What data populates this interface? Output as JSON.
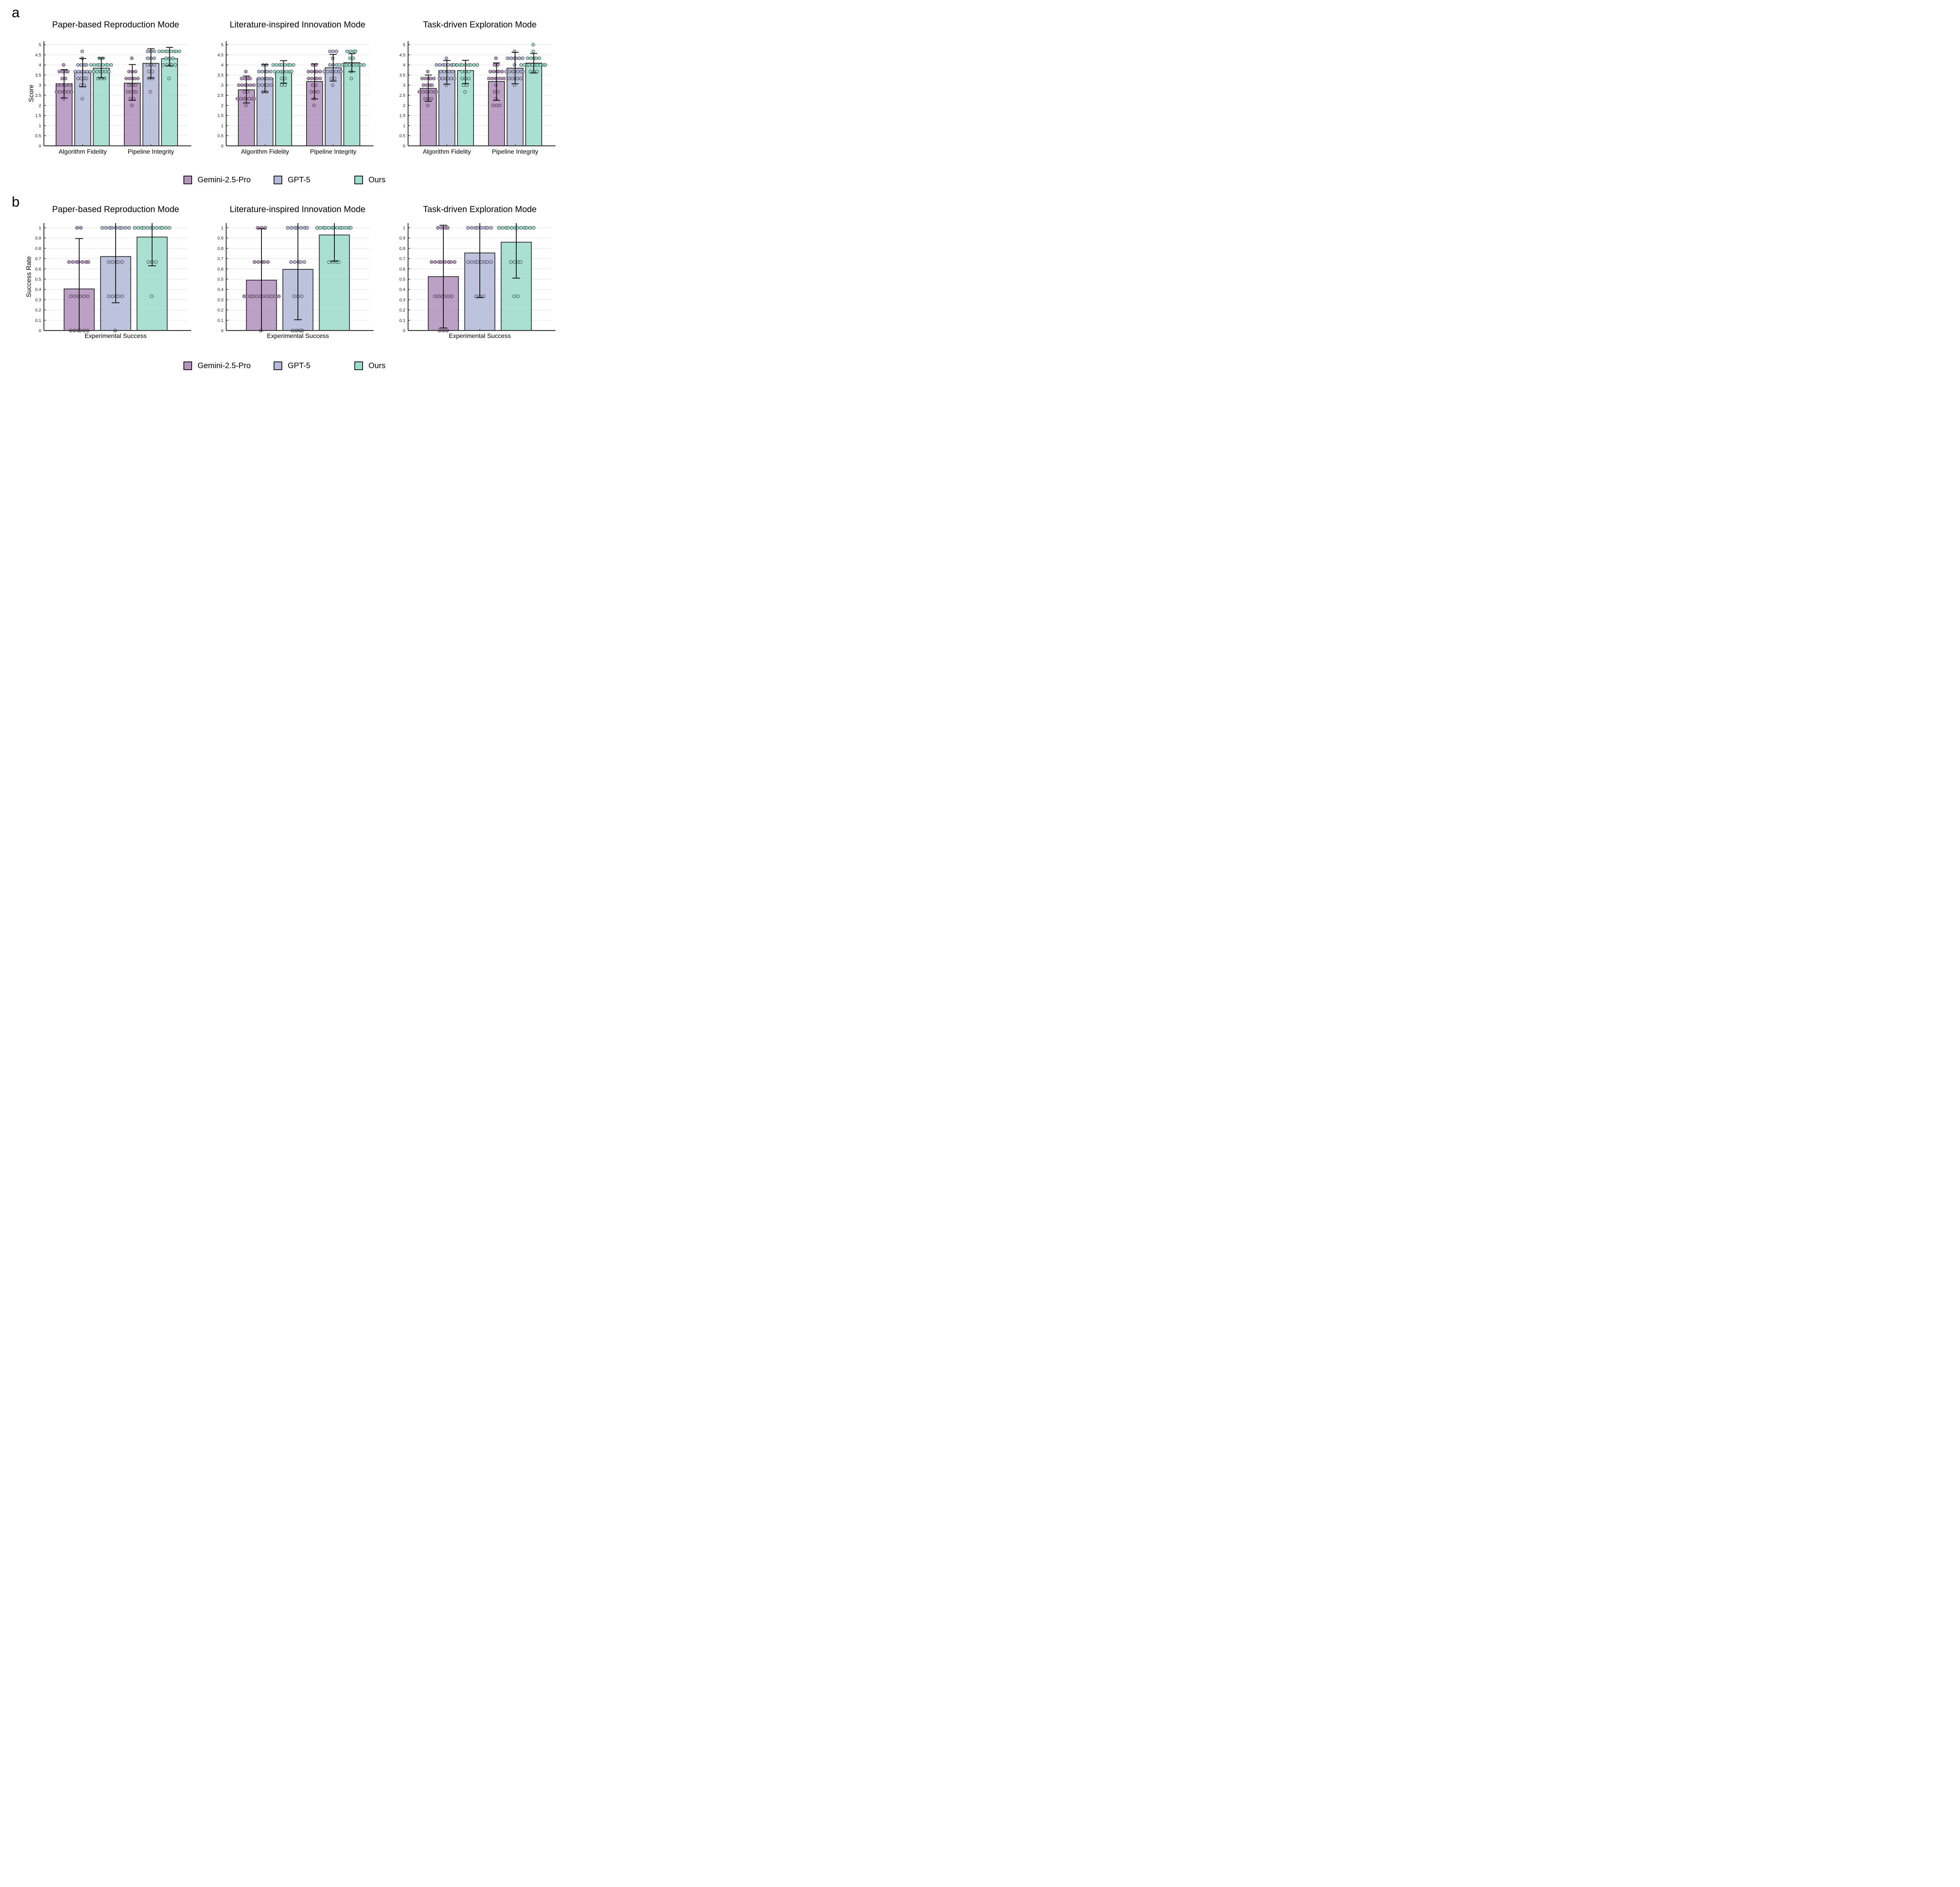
{
  "figure": {
    "background": "#ffffff",
    "panel_letters": {
      "a": "a",
      "b": "b"
    }
  },
  "legend": {
    "items": [
      {
        "label": "Gemini-2.5-Pro",
        "fill": "#b493bd",
        "point_fill": "#b288bb"
      },
      {
        "label": "GPT-5",
        "fill": "#b4bad8",
        "point_fill": "#aeb4d8"
      },
      {
        "label": "Ours",
        "fill": "#9edccb",
        "point_fill": "#8fdec6"
      }
    ]
  },
  "style_colors": {
    "grid": "#e3e3e3",
    "axis": "#2f2f2f",
    "error_bar": "#0d0d0d",
    "bar_edge": "#1f1f1f",
    "point_edge": "#4a4a4a",
    "tick_text": "#1a1a1a"
  },
  "chart_data": [
    {
      "type": "bar",
      "row": "a",
      "title": "Paper-based Reproduction Mode",
      "ylabel": "Score",
      "ylim": [
        0,
        5.17
      ],
      "yticks": [
        0,
        0.5,
        1,
        1.5,
        2,
        2.5,
        3,
        3.5,
        4,
        4.5,
        5
      ],
      "grid": true,
      "categories": [
        "Algorithm Fidelity",
        "Pipeline Integrity"
      ],
      "series": [
        {
          "name": "Gemini-2.5-Pro",
          "values": [
            3.07,
            3.1
          ],
          "err_lo": [
            2.37,
            2.25
          ],
          "err_hi": [
            3.77,
            4.02
          ],
          "points": [
            [
              [
                4.0,
                1
              ],
              [
                3.67,
                4
              ],
              [
                3.33,
                2
              ],
              [
                3.0,
                5
              ],
              [
                2.67,
                6
              ],
              [
                2.33,
                1
              ]
            ],
            [
              [
                4.33,
                1
              ],
              [
                3.67,
                3
              ],
              [
                3.33,
                5
              ],
              [
                3.0,
                3
              ],
              [
                2.67,
                4
              ],
              [
                2.33,
                2
              ],
              [
                2.0,
                1
              ]
            ]
          ]
        },
        {
          "name": "GPT-5",
          "values": [
            3.62,
            4.08
          ],
          "err_lo": [
            2.92,
            3.35
          ],
          "err_hi": [
            4.32,
            4.8
          ],
          "points": [
            [
              [
                4.67,
                1
              ],
              [
                4.33,
                1
              ],
              [
                4.0,
                4
              ],
              [
                3.67,
                6
              ],
              [
                3.33,
                4
              ],
              [
                3.0,
                2
              ],
              [
                2.33,
                1
              ]
            ],
            [
              [
                4.67,
                3
              ],
              [
                4.33,
                3
              ],
              [
                4.0,
                3
              ],
              [
                3.67,
                2
              ],
              [
                3.33,
                2
              ],
              [
                2.67,
                1
              ]
            ]
          ]
        },
        {
          "name": "Ours",
          "values": [
            3.84,
            4.31
          ],
          "err_lo": [
            3.36,
            3.95
          ],
          "err_hi": [
            4.34,
            4.87
          ],
          "points": [
            [
              [
                4.33,
                2
              ],
              [
                4.0,
                8
              ],
              [
                3.67,
                6
              ],
              [
                3.33,
                3
              ]
            ],
            [
              [
                4.67,
                8
              ],
              [
                4.33,
                3
              ],
              [
                4.0,
                5
              ],
              [
                3.33,
                1
              ]
            ]
          ]
        }
      ]
    },
    {
      "type": "bar",
      "row": "a",
      "title": "Literature-inspired Innovation Mode",
      "ylabel": "",
      "ylim": [
        0,
        5.17
      ],
      "yticks": [
        0,
        0.5,
        1,
        1.5,
        2,
        2.5,
        3,
        3.5,
        4,
        4.5,
        5
      ],
      "grid": true,
      "categories": [
        "Algorithm Fidelity",
        "Pipeline Integrity"
      ],
      "series": [
        {
          "name": "Gemini-2.5-Pro",
          "values": [
            2.77,
            3.18
          ],
          "err_lo": [
            2.12,
            2.32
          ],
          "err_hi": [
            3.45,
            4.05
          ],
          "points": [
            [
              [
                3.67,
                1
              ],
              [
                3.33,
                4
              ],
              [
                3.0,
                6
              ],
              [
                2.67,
                2
              ],
              [
                2.33,
                7
              ],
              [
                2.0,
                1
              ]
            ],
            [
              [
                4.0,
                2
              ],
              [
                3.67,
                5
              ],
              [
                3.33,
                5
              ],
              [
                3.0,
                2
              ],
              [
                2.67,
                3
              ],
              [
                2.33,
                1
              ],
              [
                2.0,
                1
              ]
            ]
          ]
        },
        {
          "name": "GPT-5",
          "values": [
            3.34,
            3.86
          ],
          "err_lo": [
            2.66,
            3.2
          ],
          "err_hi": [
            4.02,
            4.52
          ],
          "points": [
            [
              [
                4.0,
                2
              ],
              [
                3.67,
                5
              ],
              [
                3.33,
                5
              ],
              [
                3.0,
                5
              ],
              [
                2.67,
                2
              ]
            ],
            [
              [
                4.67,
                3
              ],
              [
                4.33,
                1
              ],
              [
                4.0,
                3
              ],
              [
                3.67,
                7
              ],
              [
                3.33,
                2
              ],
              [
                3.0,
                1
              ]
            ]
          ]
        },
        {
          "name": "Ours",
          "values": [
            3.66,
            4.11
          ],
          "err_lo": [
            3.1,
            3.66
          ],
          "err_hi": [
            4.21,
            4.56
          ],
          "points": [
            [
              [
                4.0,
                8
              ],
              [
                3.67,
                7
              ],
              [
                3.33,
                2
              ],
              [
                3.0,
                2
              ]
            ],
            [
              [
                4.67,
                4
              ],
              [
                4.33,
                2
              ],
              [
                4.0,
                11
              ],
              [
                3.67,
                1
              ],
              [
                3.33,
                1
              ]
            ]
          ]
        }
      ]
    },
    {
      "type": "bar",
      "row": "a",
      "title": "Task-driven Exploration Mode",
      "ylabel": "",
      "ylim": [
        0,
        5.17
      ],
      "yticks": [
        0,
        0.5,
        1,
        1.5,
        2,
        2.5,
        3,
        3.5,
        4,
        4.5,
        5
      ],
      "grid": true,
      "categories": [
        "Algorithm Fidelity",
        "Pipeline Integrity"
      ],
      "series": [
        {
          "name": "Gemini-2.5-Pro",
          "values": [
            2.84,
            3.18
          ],
          "err_lo": [
            2.2,
            2.25
          ],
          "err_hi": [
            3.5,
            4.1
          ],
          "points": [
            [
              [
                3.67,
                1
              ],
              [
                3.33,
                5
              ],
              [
                3.0,
                4
              ],
              [
                2.67,
                7
              ],
              [
                2.33,
                3
              ],
              [
                2.0,
                1
              ]
            ],
            [
              [
                4.33,
                1
              ],
              [
                4.0,
                2
              ],
              [
                3.67,
                5
              ],
              [
                3.33,
                6
              ],
              [
                3.0,
                1
              ],
              [
                2.67,
                2
              ],
              [
                2.33,
                1
              ],
              [
                2.0,
                3
              ]
            ]
          ]
        },
        {
          "name": "GPT-5",
          "values": [
            3.72,
            3.84
          ],
          "err_lo": [
            3.05,
            3.07
          ],
          "err_hi": [
            4.22,
            4.62
          ],
          "points": [
            [
              [
                4.33,
                1
              ],
              [
                4.0,
                8
              ],
              [
                3.67,
                5
              ],
              [
                3.33,
                6
              ],
              [
                3.0,
                1
              ]
            ],
            [
              [
                4.67,
                1
              ],
              [
                4.33,
                6
              ],
              [
                4.0,
                1
              ],
              [
                3.67,
                7
              ],
              [
                3.33,
                5
              ],
              [
                3.0,
                1
              ]
            ]
          ]
        },
        {
          "name": "Ours",
          "values": [
            3.72,
            4.09
          ],
          "err_lo": [
            3.08,
            3.6
          ],
          "err_hi": [
            4.23,
            4.57
          ],
          "points": [
            [
              [
                4.0,
                9
              ],
              [
                3.67,
                3
              ],
              [
                3.33,
                3
              ],
              [
                3.0,
                2
              ],
              [
                2.67,
                1
              ]
            ],
            [
              [
                5.0,
                1
              ],
              [
                4.67,
                1
              ],
              [
                4.33,
                5
              ],
              [
                4.0,
                10
              ],
              [
                3.67,
                3
              ]
            ]
          ]
        }
      ]
    },
    {
      "type": "bar",
      "row": "b",
      "title": "Paper-based Reproduction Mode",
      "ylabel": "Success Rate",
      "ylim": [
        0,
        1.046
      ],
      "yticks": [
        0,
        0.1,
        0.2,
        0.3,
        0.4,
        0.5,
        0.6,
        0.7,
        0.8,
        0.9,
        1
      ],
      "grid": true,
      "categories": [
        "Experimental Success"
      ],
      "series": [
        {
          "name": "Gemini-2.5-Pro",
          "values": [
            0.405
          ],
          "err_lo": [
            0.0
          ],
          "err_hi": [
            0.895
          ],
          "points": [
            [
              [
                1.0,
                2
              ],
              [
                0.667,
                7
              ],
              [
                0.333,
                6
              ],
              [
                0.0,
                6
              ]
            ]
          ]
        },
        {
          "name": "GPT-5",
          "values": [
            0.72
          ],
          "err_lo": [
            0.27
          ],
          "err_hi": [
            1.1
          ],
          "points": [
            [
              [
                1.0,
                9
              ],
              [
                0.667,
                5
              ],
              [
                0.333,
                5
              ],
              [
                0.0,
                1
              ]
            ]
          ]
        },
        {
          "name": "Ours",
          "values": [
            0.91
          ],
          "err_lo": [
            0.63
          ],
          "err_hi": [
            1.1
          ],
          "points": [
            [
              [
                1.0,
                12
              ],
              [
                0.667,
                3
              ],
              [
                0.333,
                1
              ]
            ]
          ]
        }
      ]
    },
    {
      "type": "bar",
      "row": "b",
      "title": "Literature-inspired Innovation Mode",
      "ylabel": "",
      "ylim": [
        0,
        1.046
      ],
      "yticks": [
        0,
        0.1,
        0.2,
        0.3,
        0.4,
        0.5,
        0.6,
        0.7,
        0.8,
        0.9,
        1
      ],
      "grid": true,
      "categories": [
        "Experimental Success"
      ],
      "series": [
        {
          "name": "Gemini-2.5-Pro",
          "values": [
            0.49
          ],
          "err_lo": [
            -0.05
          ],
          "err_hi": [
            0.99
          ],
          "points": [
            [
              [
                1.0,
                3
              ],
              [
                0.667,
                5
              ],
              [
                0.333,
                12
              ],
              [
                0.0,
                1
              ]
            ]
          ]
        },
        {
          "name": "GPT-5",
          "values": [
            0.595
          ],
          "err_lo": [
            0.105
          ],
          "err_hi": [
            1.1
          ],
          "points": [
            [
              [
                1.0,
                7
              ],
              [
                0.667,
                5
              ],
              [
                0.333,
                3
              ],
              [
                0.0,
                4
              ]
            ]
          ]
        },
        {
          "name": "Ours",
          "values": [
            0.93
          ],
          "err_lo": [
            0.675
          ],
          "err_hi": [
            1.1
          ],
          "points": [
            [
              [
                1.0,
                13
              ],
              [
                0.667,
                4
              ]
            ]
          ]
        }
      ]
    },
    {
      "type": "bar",
      "row": "b",
      "title": "Task-driven Exploration Mode",
      "ylabel": "",
      "ylim": [
        0,
        1.046
      ],
      "yticks": [
        0,
        0.1,
        0.2,
        0.3,
        0.4,
        0.5,
        0.6,
        0.7,
        0.8,
        0.9,
        1
      ],
      "grid": true,
      "categories": [
        "Experimental Success"
      ],
      "series": [
        {
          "name": "Gemini-2.5-Pro",
          "values": [
            0.525
          ],
          "err_lo": [
            0.025
          ],
          "err_hi": [
            1.025
          ],
          "points": [
            [
              [
                1.0,
                4
              ],
              [
                0.667,
                8
              ],
              [
                0.333,
                6
              ],
              [
                0.0,
                3
              ]
            ]
          ]
        },
        {
          "name": "GPT-5",
          "values": [
            0.755
          ],
          "err_lo": [
            0.32
          ],
          "err_hi": [
            1.1
          ],
          "points": [
            [
              [
                1.0,
                8
              ],
              [
                0.667,
                8
              ],
              [
                0.333,
                3
              ]
            ]
          ]
        },
        {
          "name": "Ours",
          "values": [
            0.86
          ],
          "err_lo": [
            0.51
          ],
          "err_hi": [
            1.1
          ],
          "points": [
            [
              [
                1.0,
                12
              ],
              [
                0.667,
                4
              ],
              [
                0.333,
                2
              ]
            ]
          ]
        }
      ]
    }
  ]
}
